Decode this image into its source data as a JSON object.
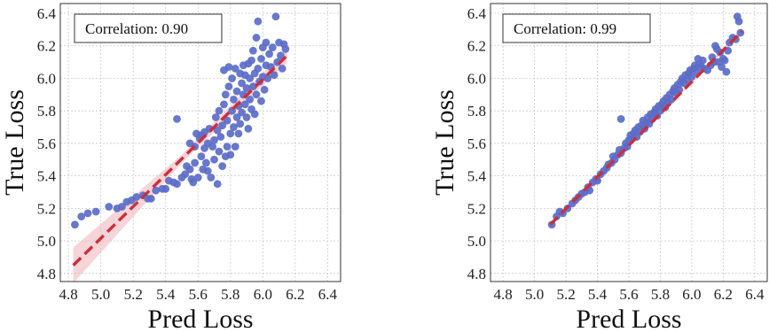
{
  "chart_data": [
    {
      "type": "scatter",
      "xlabel": "Pred Loss",
      "ylabel": "True Loss",
      "annotation": "Correlation: 0.90",
      "xlim": [
        4.75,
        6.48
      ],
      "ylim": [
        4.75,
        6.46
      ],
      "xticks": [
        "4.8",
        "5.0",
        "5.2",
        "5.4",
        "5.6",
        "5.8",
        "6.0",
        "6.2",
        "6.4"
      ],
      "yticks": [
        "4.8",
        "5.0",
        "5.2",
        "5.4",
        "5.6",
        "5.8",
        "6.0",
        "6.2",
        "6.4"
      ],
      "grid": true,
      "colors": {
        "points": "#5b6cc8",
        "fit_line": "#c8303c",
        "band": "#f0b7bd"
      },
      "fit_line": {
        "x": [
          4.83,
          6.15
        ],
        "y": [
          4.85,
          6.14
        ]
      },
      "confidence_band_halfwidth": {
        "x": [
          4.83,
          5.5,
          6.15
        ],
        "w": [
          0.11,
          0.025,
          0.045
        ]
      },
      "points": [
        [
          4.84,
          5.1
        ],
        [
          4.88,
          5.15
        ],
        [
          4.92,
          5.17
        ],
        [
          4.97,
          5.18
        ],
        [
          5.05,
          5.21
        ],
        [
          5.1,
          5.2
        ],
        [
          5.13,
          5.21
        ],
        [
          5.16,
          5.24
        ],
        [
          5.19,
          5.25
        ],
        [
          5.22,
          5.27
        ],
        [
          5.26,
          5.28
        ],
        [
          5.29,
          5.26
        ],
        [
          5.31,
          5.26
        ],
        [
          5.34,
          5.31
        ],
        [
          5.38,
          5.32
        ],
        [
          5.4,
          5.32
        ],
        [
          5.42,
          5.37
        ],
        [
          5.45,
          5.36
        ],
        [
          5.47,
          5.35
        ],
        [
          5.47,
          5.75
        ],
        [
          5.5,
          5.39
        ],
        [
          5.52,
          5.41
        ],
        [
          5.53,
          5.46
        ],
        [
          5.55,
          5.44
        ],
        [
          5.55,
          5.6
        ],
        [
          5.56,
          5.38
        ],
        [
          5.57,
          5.36
        ],
        [
          5.58,
          5.48
        ],
        [
          5.58,
          5.58
        ],
        [
          5.59,
          5.66
        ],
        [
          5.6,
          5.39
        ],
        [
          5.61,
          5.63
        ],
        [
          5.62,
          5.65
        ],
        [
          5.62,
          5.52
        ],
        [
          5.63,
          5.44
        ],
        [
          5.64,
          5.57
        ],
        [
          5.64,
          5.67
        ],
        [
          5.65,
          5.48
        ],
        [
          5.66,
          5.6
        ],
        [
          5.66,
          5.43
        ],
        [
          5.67,
          5.69
        ],
        [
          5.68,
          5.39
        ],
        [
          5.69,
          5.58
        ],
        [
          5.7,
          5.5
        ],
        [
          5.7,
          5.62
        ],
        [
          5.71,
          5.76
        ],
        [
          5.72,
          5.68
        ],
        [
          5.72,
          5.35
        ],
        [
          5.73,
          5.55
        ],
        [
          5.73,
          5.8
        ],
        [
          5.74,
          5.64
        ],
        [
          5.75,
          5.46
        ],
        [
          5.75,
          5.71
        ],
        [
          5.76,
          5.84
        ],
        [
          5.76,
          6.05
        ],
        [
          5.77,
          5.52
        ],
        [
          5.77,
          5.9
        ],
        [
          5.78,
          5.58
        ],
        [
          5.78,
          5.74
        ],
        [
          5.79,
          5.95
        ],
        [
          5.79,
          6.07
        ],
        [
          5.8,
          5.53
        ],
        [
          5.8,
          5.66
        ],
        [
          5.81,
          5.8
        ],
        [
          5.81,
          6.0
        ],
        [
          5.82,
          5.7
        ],
        [
          5.82,
          5.87
        ],
        [
          5.83,
          5.58
        ],
        [
          5.83,
          6.06
        ],
        [
          5.84,
          5.76
        ],
        [
          5.84,
          5.92
        ],
        [
          5.85,
          5.66
        ],
        [
          5.85,
          5.83
        ],
        [
          5.86,
          6.03
        ],
        [
          5.86,
          5.72
        ],
        [
          5.87,
          5.97
        ],
        [
          5.87,
          5.79
        ],
        [
          5.88,
          6.08
        ],
        [
          5.88,
          5.9
        ],
        [
          5.89,
          5.84
        ],
        [
          5.89,
          6.02
        ],
        [
          5.9,
          5.76
        ],
        [
          5.9,
          5.94
        ],
        [
          5.91,
          6.09
        ],
        [
          5.91,
          5.69
        ],
        [
          5.92,
          5.87
        ],
        [
          5.92,
          6.0
        ],
        [
          5.93,
          5.81
        ],
        [
          5.93,
          6.11
        ],
        [
          5.94,
          5.95
        ],
        [
          5.94,
          6.17
        ],
        [
          5.95,
          5.78
        ],
        [
          5.95,
          6.03
        ],
        [
          5.96,
          5.9
        ],
        [
          5.96,
          6.25
        ],
        [
          5.97,
          6.35
        ],
        [
          5.97,
          6.06
        ],
        [
          5.98,
          5.98
        ],
        [
          5.99,
          6.12
        ],
        [
          5.99,
          5.86
        ],
        [
          6.0,
          6.01
        ],
        [
          6.0,
          6.19
        ],
        [
          6.01,
          5.93
        ],
        [
          6.02,
          6.08
        ],
        [
          6.02,
          6.22
        ],
        [
          6.03,
          6.0
        ],
        [
          6.04,
          6.15
        ],
        [
          6.05,
          6.07
        ],
        [
          6.06,
          6.19
        ],
        [
          6.07,
          6.02
        ],
        [
          6.08,
          6.38
        ],
        [
          6.09,
          6.1
        ],
        [
          6.1,
          6.22
        ],
        [
          6.11,
          6.14
        ],
        [
          6.12,
          6.06
        ],
        [
          6.13,
          6.21
        ],
        [
          6.14,
          6.18
        ]
      ]
    },
    {
      "type": "scatter",
      "xlabel": "Pred Loss",
      "ylabel": "True Loss",
      "annotation": "Correlation: 0.99",
      "xlim": [
        4.72,
        6.48
      ],
      "ylim": [
        4.75,
        6.46
      ],
      "xticks": [
        "4.8",
        "5.0",
        "5.2",
        "5.4",
        "5.6",
        "5.8",
        "6.0",
        "6.2",
        "6.4"
      ],
      "yticks": [
        "4.8",
        "5.0",
        "5.2",
        "5.4",
        "5.6",
        "5.8",
        "6.0",
        "6.2",
        "6.4"
      ],
      "grid": true,
      "colors": {
        "points": "#5b6cc8",
        "fit_line": "#c8303c",
        "band": "#f0b7bd"
      },
      "fit_line": {
        "x": [
          5.1,
          6.32
        ],
        "y": [
          5.1,
          6.29
        ]
      },
      "confidence_band_halfwidth": {
        "x": [
          5.1,
          5.7,
          6.32
        ],
        "w": [
          0.015,
          0.008,
          0.015
        ]
      },
      "points": [
        [
          5.11,
          5.1
        ],
        [
          5.14,
          5.15
        ],
        [
          5.16,
          5.18
        ],
        [
          5.18,
          5.17
        ],
        [
          5.21,
          5.2
        ],
        [
          5.24,
          5.23
        ],
        [
          5.26,
          5.25
        ],
        [
          5.28,
          5.27
        ],
        [
          5.3,
          5.29
        ],
        [
          5.32,
          5.3
        ],
        [
          5.34,
          5.33
        ],
        [
          5.35,
          5.31
        ],
        [
          5.37,
          5.36
        ],
        [
          5.39,
          5.38
        ],
        [
          5.4,
          5.37
        ],
        [
          5.42,
          5.41
        ],
        [
          5.44,
          5.43
        ],
        [
          5.46,
          5.45
        ],
        [
          5.47,
          5.47
        ],
        [
          5.49,
          5.48
        ],
        [
          5.5,
          5.52
        ],
        [
          5.51,
          5.5
        ],
        [
          5.53,
          5.53
        ],
        [
          5.54,
          5.56
        ],
        [
          5.55,
          5.54
        ],
        [
          5.55,
          5.75
        ],
        [
          5.57,
          5.57
        ],
        [
          5.58,
          5.6
        ],
        [
          5.59,
          5.58
        ],
        [
          5.6,
          5.62
        ],
        [
          5.61,
          5.65
        ],
        [
          5.62,
          5.63
        ],
        [
          5.63,
          5.66
        ],
        [
          5.64,
          5.68
        ],
        [
          5.65,
          5.64
        ],
        [
          5.66,
          5.7
        ],
        [
          5.67,
          5.67
        ],
        [
          5.68,
          5.71
        ],
        [
          5.69,
          5.74
        ],
        [
          5.7,
          5.69
        ],
        [
          5.71,
          5.73
        ],
        [
          5.72,
          5.76
        ],
        [
          5.73,
          5.72
        ],
        [
          5.74,
          5.78
        ],
        [
          5.75,
          5.75
        ],
        [
          5.76,
          5.79
        ],
        [
          5.77,
          5.81
        ],
        [
          5.78,
          5.77
        ],
        [
          5.79,
          5.83
        ],
        [
          5.8,
          5.8
        ],
        [
          5.81,
          5.84
        ],
        [
          5.82,
          5.86
        ],
        [
          5.83,
          5.82
        ],
        [
          5.84,
          5.88
        ],
        [
          5.85,
          5.85
        ],
        [
          5.86,
          5.9
        ],
        [
          5.87,
          5.87
        ],
        [
          5.88,
          5.92
        ],
        [
          5.89,
          5.94
        ],
        [
          5.9,
          5.91
        ],
        [
          5.91,
          5.96
        ],
        [
          5.92,
          5.93
        ],
        [
          5.93,
          5.98
        ],
        [
          5.94,
          6.0
        ],
        [
          5.95,
          5.97
        ],
        [
          5.96,
          6.02
        ],
        [
          5.97,
          5.99
        ],
        [
          5.98,
          6.03
        ],
        [
          5.99,
          6.05
        ],
        [
          6.0,
          6.01
        ],
        [
          6.01,
          6.06
        ],
        [
          6.02,
          6.08
        ],
        [
          6.03,
          6.04
        ],
        [
          6.04,
          6.12
        ],
        [
          6.05,
          6.09
        ],
        [
          6.06,
          6.07
        ],
        [
          6.07,
          6.11
        ],
        [
          6.08,
          6.06
        ],
        [
          6.1,
          6.05
        ],
        [
          6.12,
          6.08
        ],
        [
          6.13,
          6.13
        ],
        [
          6.14,
          6.1
        ],
        [
          6.15,
          6.2
        ],
        [
          6.16,
          6.18
        ],
        [
          6.17,
          6.1
        ],
        [
          6.18,
          6.16
        ],
        [
          6.19,
          6.07
        ],
        [
          6.2,
          6.12
        ],
        [
          6.21,
          6.11
        ],
        [
          6.22,
          6.04
        ],
        [
          6.23,
          6.17
        ],
        [
          6.24,
          6.22
        ],
        [
          6.26,
          6.25
        ],
        [
          6.28,
          6.24
        ],
        [
          6.29,
          6.38
        ],
        [
          6.3,
          6.35
        ],
        [
          6.31,
          6.28
        ]
      ]
    }
  ]
}
